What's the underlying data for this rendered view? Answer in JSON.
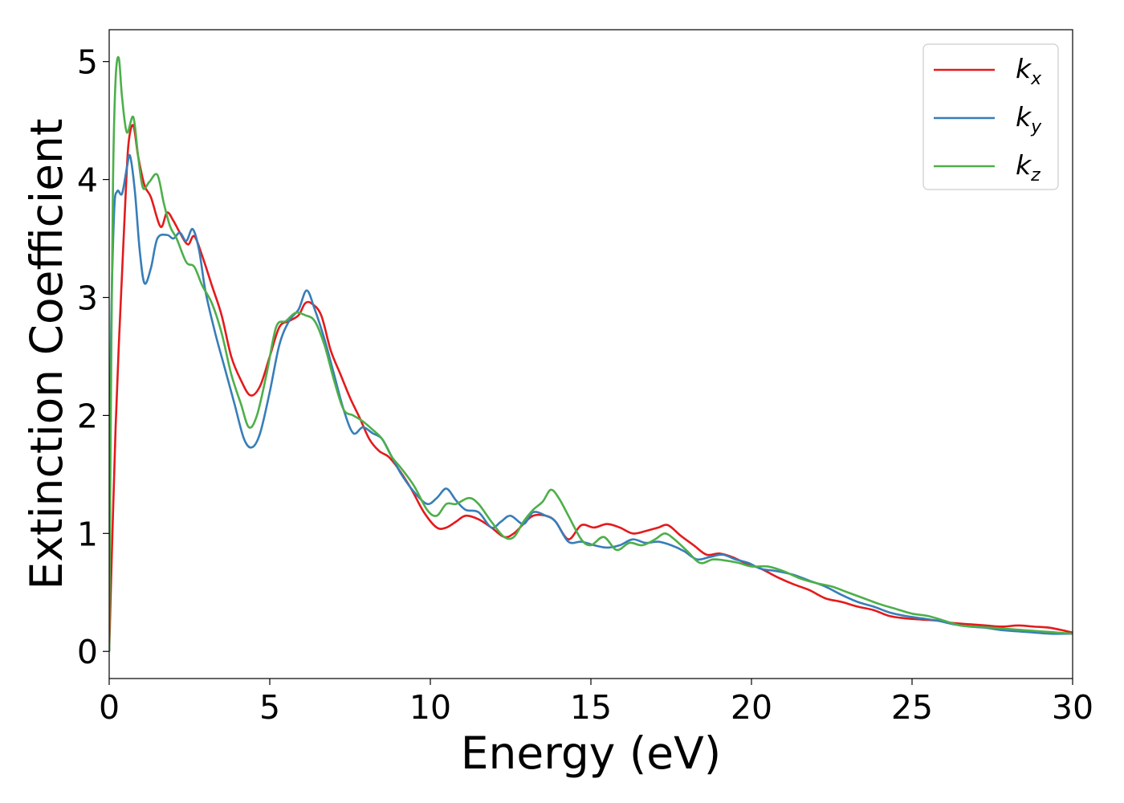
{
  "chart_data": {
    "type": "line",
    "title": "",
    "xlabel": "Energy (eV)",
    "ylabel": "Extinction Coefficient",
    "xlim": [
      0,
      30
    ],
    "ylim": [
      -0.23,
      5.27
    ],
    "xticks": [
      0,
      5,
      10,
      15,
      20,
      25,
      30
    ],
    "yticks": [
      0,
      1,
      2,
      3,
      4,
      5
    ],
    "grid": false,
    "legend_position": "top-right",
    "series": [
      {
        "name": "k",
        "subscript": "x",
        "color": "#e41a1c",
        "x": [
          0,
          0.1,
          0.2,
          0.3,
          0.4,
          0.5,
          0.6,
          0.75,
          0.9,
          1.1,
          1.3,
          1.6,
          1.8,
          2.0,
          2.2,
          2.45,
          2.65,
          2.9,
          3.2,
          3.5,
          3.8,
          4.1,
          4.4,
          4.7,
          5.0,
          5.3,
          5.6,
          5.9,
          6.1,
          6.3,
          6.6,
          6.9,
          7.2,
          7.5,
          7.8,
          8.1,
          8.4,
          8.7,
          9.0,
          9.4,
          9.8,
          10.2,
          10.5,
          10.8,
          11.1,
          11.5,
          11.9,
          12.3,
          12.6,
          12.9,
          13.2,
          13.6,
          13.9,
          14.3,
          14.7,
          15.1,
          15.5,
          15.9,
          16.3,
          16.7,
          17.1,
          17.4,
          17.8,
          18.2,
          18.6,
          19.0,
          19.4,
          19.8,
          20.3,
          20.8,
          21.3,
          21.8,
          22.3,
          22.8,
          23.3,
          23.8,
          24.3,
          24.8,
          25.3,
          25.8,
          26.3,
          26.8,
          27.3,
          27.8,
          28.3,
          28.8,
          29.3,
          30.0
        ],
        "values": [
          0,
          1.0,
          1.9,
          2.6,
          3.2,
          3.8,
          4.3,
          4.46,
          4.2,
          3.95,
          3.85,
          3.6,
          3.72,
          3.65,
          3.55,
          3.45,
          3.52,
          3.35,
          3.1,
          2.85,
          2.5,
          2.3,
          2.17,
          2.25,
          2.5,
          2.75,
          2.8,
          2.85,
          2.95,
          2.95,
          2.85,
          2.55,
          2.35,
          2.15,
          1.98,
          1.8,
          1.7,
          1.65,
          1.55,
          1.38,
          1.18,
          1.05,
          1.05,
          1.1,
          1.15,
          1.12,
          1.05,
          0.97,
          1.0,
          1.08,
          1.15,
          1.15,
          1.1,
          0.95,
          1.07,
          1.05,
          1.08,
          1.05,
          1.0,
          1.02,
          1.05,
          1.07,
          0.98,
          0.9,
          0.82,
          0.83,
          0.8,
          0.75,
          0.7,
          0.63,
          0.57,
          0.52,
          0.45,
          0.42,
          0.38,
          0.35,
          0.3,
          0.28,
          0.27,
          0.26,
          0.24,
          0.23,
          0.22,
          0.21,
          0.22,
          0.21,
          0.2,
          0.16
        ]
      },
      {
        "name": "k",
        "subscript": "y",
        "color": "#377eb8",
        "x": [
          0,
          0.05,
          0.15,
          0.25,
          0.4,
          0.55,
          0.65,
          0.8,
          0.95,
          1.1,
          1.3,
          1.5,
          1.8,
          2.0,
          2.2,
          2.4,
          2.6,
          2.8,
          3.0,
          3.3,
          3.6,
          3.9,
          4.2,
          4.45,
          4.7,
          5.0,
          5.3,
          5.6,
          5.9,
          6.15,
          6.4,
          6.7,
          7.0,
          7.3,
          7.6,
          7.9,
          8.2,
          8.5,
          8.8,
          9.1,
          9.5,
          9.9,
          10.2,
          10.5,
          10.8,
          11.1,
          11.5,
          11.9,
          12.2,
          12.5,
          12.9,
          13.2,
          13.6,
          13.9,
          14.3,
          14.7,
          15.1,
          15.5,
          15.9,
          16.3,
          16.7,
          17.1,
          17.5,
          17.9,
          18.3,
          18.7,
          19.1,
          19.5,
          19.9,
          20.3,
          20.8,
          21.3,
          21.8,
          22.3,
          22.8,
          23.3,
          23.8,
          24.3,
          24.8,
          25.3,
          25.8,
          26.3,
          26.8,
          27.3,
          27.8,
          28.3,
          28.8,
          29.3,
          30.0
        ],
        "values": [
          0,
          2.5,
          3.7,
          3.9,
          3.88,
          4.1,
          4.2,
          3.9,
          3.4,
          3.12,
          3.25,
          3.5,
          3.53,
          3.5,
          3.55,
          3.48,
          3.58,
          3.4,
          3.05,
          2.7,
          2.4,
          2.1,
          1.8,
          1.73,
          1.85,
          2.2,
          2.6,
          2.8,
          2.9,
          3.06,
          2.9,
          2.65,
          2.35,
          2.05,
          1.85,
          1.9,
          1.85,
          1.8,
          1.65,
          1.5,
          1.35,
          1.25,
          1.3,
          1.38,
          1.28,
          1.2,
          1.18,
          1.05,
          1.1,
          1.15,
          1.08,
          1.18,
          1.15,
          1.1,
          0.93,
          0.93,
          0.9,
          0.88,
          0.9,
          0.95,
          0.92,
          0.93,
          0.9,
          0.85,
          0.78,
          0.8,
          0.82,
          0.78,
          0.75,
          0.7,
          0.68,
          0.65,
          0.6,
          0.55,
          0.48,
          0.42,
          0.38,
          0.33,
          0.3,
          0.28,
          0.26,
          0.23,
          0.21,
          0.2,
          0.18,
          0.17,
          0.16,
          0.15,
          0.15
        ]
      },
      {
        "name": "k",
        "subscript": "z",
        "color": "#4daf4a",
        "x": [
          0,
          0.05,
          0.12,
          0.2,
          0.3,
          0.4,
          0.55,
          0.75,
          0.9,
          1.05,
          1.25,
          1.5,
          1.7,
          1.9,
          2.1,
          2.4,
          2.65,
          2.9,
          3.2,
          3.5,
          3.8,
          4.1,
          4.35,
          4.6,
          4.9,
          5.2,
          5.5,
          5.8,
          6.1,
          6.4,
          6.7,
          7.0,
          7.3,
          7.6,
          7.9,
          8.2,
          8.5,
          8.8,
          9.1,
          9.5,
          9.9,
          10.2,
          10.5,
          10.8,
          11.2,
          11.5,
          11.9,
          12.3,
          12.6,
          12.9,
          13.2,
          13.5,
          13.75,
          14.0,
          14.3,
          14.7,
          15.0,
          15.4,
          15.8,
          16.2,
          16.6,
          17.0,
          17.3,
          17.6,
          18.0,
          18.4,
          18.8,
          19.2,
          19.6,
          20.0,
          20.5,
          21.0,
          21.5,
          22.0,
          22.5,
          23.0,
          23.5,
          24.0,
          24.5,
          25.0,
          25.5,
          26.0,
          26.5,
          27.0,
          27.5,
          28.0,
          28.5,
          29.0,
          29.5,
          30.0
        ],
        "values": [
          0,
          2.0,
          4.0,
          4.85,
          5.03,
          4.7,
          4.4,
          4.53,
          4.2,
          3.93,
          3.98,
          4.04,
          3.8,
          3.6,
          3.5,
          3.3,
          3.26,
          3.1,
          2.95,
          2.7,
          2.35,
          2.1,
          1.9,
          2.0,
          2.35,
          2.75,
          2.8,
          2.87,
          2.85,
          2.8,
          2.6,
          2.3,
          2.05,
          2.0,
          1.95,
          1.88,
          1.8,
          1.65,
          1.55,
          1.4,
          1.2,
          1.15,
          1.25,
          1.25,
          1.3,
          1.25,
          1.1,
          0.97,
          0.97,
          1.1,
          1.2,
          1.27,
          1.37,
          1.3,
          1.15,
          0.95,
          0.9,
          0.97,
          0.86,
          0.92,
          0.9,
          0.95,
          1.0,
          0.95,
          0.85,
          0.75,
          0.78,
          0.77,
          0.75,
          0.72,
          0.72,
          0.68,
          0.62,
          0.58,
          0.55,
          0.5,
          0.45,
          0.4,
          0.36,
          0.32,
          0.3,
          0.26,
          0.22,
          0.21,
          0.2,
          0.19,
          0.18,
          0.17,
          0.16,
          0.15
        ]
      }
    ]
  }
}
